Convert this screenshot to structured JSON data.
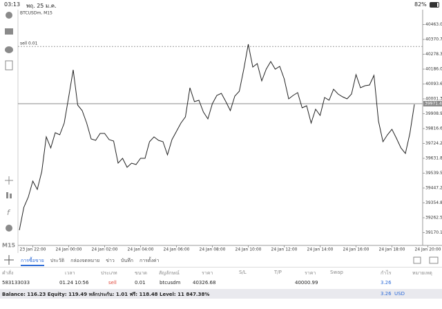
{
  "status": {
    "time": "03:13",
    "date": "พฤ. 25 ม.ค.",
    "battery": "82%"
  },
  "chart_data": {
    "type": "line",
    "title": "BTCUSDm, M15",
    "color": "#222222",
    "values": [
      39185.25,
      39326.98,
      39391.41,
      39490.19,
      39438.65,
      39550.32,
      39765.07,
      39696.35,
      39790.84,
      39777.96,
      39850.97,
      40014.19,
      40181.69,
      39962.64,
      39928.28,
      39850.97,
      39752.19,
      39743.6,
      39786.55,
      39786.55,
      39747.89,
      39739.3,
      39601.86,
      39631.93,
      39576.09,
      39601.86,
      39593.27,
      39631.93,
      39631.93,
      39735.01,
      39765.07,
      39743.6,
      39735.01,
      39653.4,
      39747.89,
      39799.43,
      39850.97,
      39889.63,
      40070.02,
      39984.12,
      39992.71,
      39919.69,
      39876.74,
      39971.23,
      40022.78,
      40035.66,
      39984.12,
      39928.28,
      40018.48,
      40048.55,
      40185.99,
      40340.61,
      40198.87,
      40220.35,
      40112.97,
      40185.99,
      40233.23,
      40185.99,
      40203.17,
      40125.86,
      40001.3,
      40022.78,
      40039.96,
      39945.46,
      39958.35,
      39850.97,
      39936.87,
      39898.22,
      40009.89,
      39992.71,
      40061.43,
      40031.37,
      40014.19,
      40001.3,
      40031.37,
      40151.63,
      40070.02,
      40082.91,
      40087.2,
      40147.33,
      39863.86,
      39735.01,
      39777.96,
      39812.32,
      39756.48,
      39696.35,
      39661.99,
      39786.55,
      39966.94
    ],
    "xlim": [
      0,
      90
    ],
    "xticks": [
      {
        "value": 3,
        "label": "23 Jan 22:00"
      },
      {
        "value": 11,
        "label": "24 Jan 00:00"
      },
      {
        "value": 19,
        "label": "24 Jan 02:00"
      },
      {
        "value": 27,
        "label": "24 Jan 04:00"
      },
      {
        "value": 35,
        "label": "24 Jan 06:00"
      },
      {
        "value": 43,
        "label": "24 Jan 08:00"
      },
      {
        "value": 51,
        "label": "24 Jan 10:00"
      },
      {
        "value": 59,
        "label": "24 Jan 12:00"
      },
      {
        "value": 67,
        "label": "24 Jan 14:00"
      },
      {
        "value": 75,
        "label": "24 Jan 16:00"
      },
      {
        "value": 83,
        "label": "24 Jan 18:00"
      },
      {
        "value": 91,
        "label": "24 Jan 20:00"
      }
    ],
    "ylim": [
      39090.76,
      40555.36
    ],
    "yticks": [
      40463.05,
      {
        "value": 40370.7,
        "label": "40370.70"
      },
      40278.35,
      {
        "value": 40186,
        "label": "40186.00"
      },
      40093.65,
      {
        "value": 40001.3,
        "label": "40001.30"
      },
      39908.95,
      {
        "value": 39816.6,
        "label": "39816.60"
      },
      39724.25,
      {
        "value": 39631.8,
        "label": "39631.80"
      },
      39539.55,
      {
        "value": 39447.2,
        "label": "39447.20"
      },
      39354.85,
      {
        "value": 39262.5,
        "label": "39262.50"
      },
      39170.15
    ],
    "bid": 39971.44,
    "order_line": {
      "label": "sell 0.01",
      "value": 40326.68
    }
  },
  "timeframe": "M15",
  "tabs": [
    "การซื้อขาย",
    "ประวัติ",
    "กล่องจดหมาย",
    "ข่าว",
    "บันทึก",
    "การตั้งค่า"
  ],
  "table": {
    "headers": [
      "คำสั่ง",
      "เวลา",
      "ประเภท",
      "ขนาด",
      "สัญลักษณ์",
      "ราคา",
      "S/L",
      "T/P",
      "ราคา",
      "Swap",
      "กำไร",
      "หมายเหตุ"
    ],
    "row": {
      "order": "583133033",
      "time": "01.24 10:56",
      "type": "sell",
      "volume": "0.01",
      "symbol": "btcusdm",
      "price": "40326.68",
      "current_price": "40000.99",
      "profit": "3.26"
    }
  },
  "footer": {
    "summary": "Balance: 116.23 Equity: 119.49 หลักประกัน: 1.01 ฟรี: 118.48 Level: 11 847.38%",
    "total": "3.26",
    "currency": "USD"
  }
}
